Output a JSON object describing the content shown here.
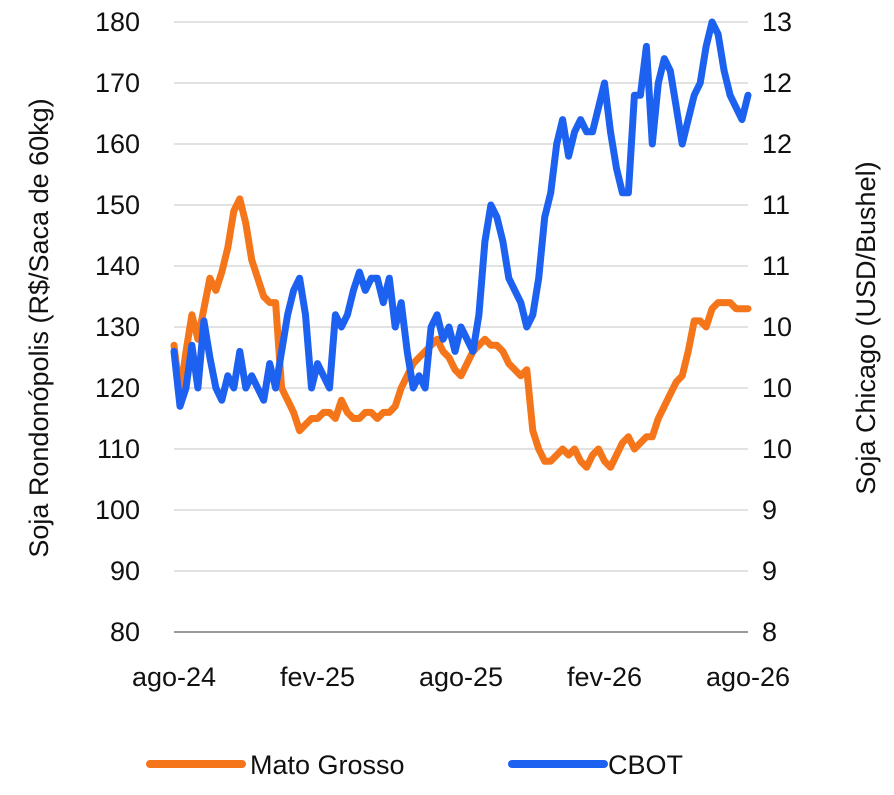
{
  "chart_data": {
    "type": "line",
    "title": "",
    "ylabel_left": "Soja Rondonópolis (R$/Saca de 60kg)",
    "ylabel_right": "Soja Chicago (USD/Bushel)",
    "ylim_left": [
      80,
      180
    ],
    "yticks_left": [
      "80",
      "90",
      "100",
      "110",
      "120",
      "130",
      "140",
      "150",
      "160",
      "170",
      "180"
    ],
    "ylim_right": [
      8,
      13
    ],
    "yticks_right": [
      "8",
      "9",
      "9",
      "10",
      "10",
      "10",
      "11",
      "11",
      "12",
      "12",
      "13"
    ],
    "xlim": [
      0,
      24
    ],
    "xticks": [
      {
        "pos": 0,
        "label": "ago-24"
      },
      {
        "pos": 6,
        "label": "fev-25"
      },
      {
        "pos": 12,
        "label": "ago-25"
      },
      {
        "pos": 18,
        "label": "fev-26"
      },
      {
        "pos": 24,
        "label": "ago-26"
      }
    ],
    "grid": true,
    "legend_position": "bottom",
    "series": [
      {
        "name": "Mato Grosso",
        "axis": "left",
        "color": "#f5761a",
        "x": [
          0,
          0.25,
          0.5,
          0.75,
          1,
          1.25,
          1.5,
          1.75,
          2,
          2.25,
          2.5,
          2.75,
          3,
          3.25,
          3.5,
          3.75,
          4,
          4.25,
          4.5,
          4.75,
          5,
          5.25,
          5.5,
          5.75,
          6,
          6.25,
          6.5,
          6.75,
          7,
          7.25,
          7.5,
          7.75,
          8,
          8.25,
          8.5,
          8.75,
          9,
          9.25,
          9.5,
          9.75,
          10,
          10.25,
          10.5,
          10.75,
          11,
          11.25,
          11.5,
          11.75,
          12,
          12.25,
          12.5,
          12.75,
          13,
          13.25,
          13.5,
          13.75,
          14,
          14.25,
          14.5,
          14.75,
          15,
          15.25,
          15.5,
          15.75,
          16,
          16.25,
          16.5,
          16.75,
          17,
          17.25,
          17.5,
          17.75,
          18,
          18.25,
          18.5,
          18.75,
          19,
          19.25,
          19.5,
          19.75,
          20,
          20.25,
          20.5,
          20.75,
          21,
          21.25,
          21.5,
          21.75,
          22,
          22.25,
          22.5,
          22.75,
          23,
          23.25,
          23.5,
          23.75,
          24
        ],
        "values": [
          127,
          119,
          126,
          132,
          128,
          133,
          138,
          136,
          139,
          143,
          149,
          151,
          147,
          141,
          138,
          135,
          134,
          134,
          120,
          118,
          116,
          113,
          114,
          115,
          115,
          116,
          116,
          115,
          118,
          116,
          115,
          115,
          116,
          116,
          115,
          116,
          116,
          117,
          120,
          122,
          124,
          125,
          126,
          127,
          128,
          126,
          125,
          123,
          122,
          124,
          126,
          127,
          128,
          127,
          127,
          126,
          124,
          123,
          122,
          123,
          113,
          110,
          108,
          108,
          109,
          110,
          109,
          110,
          108,
          107,
          109,
          110,
          108,
          107,
          109,
          111,
          112,
          110,
          111,
          112,
          112,
          115,
          117,
          119,
          121,
          122,
          126,
          131,
          131,
          130,
          133,
          134,
          134,
          134,
          133,
          133,
          133
        ]
      },
      {
        "name": "CBOT",
        "axis": "right",
        "color": "#1c61f0",
        "x": [
          0,
          0.25,
          0.5,
          0.75,
          1,
          1.25,
          1.5,
          1.75,
          2,
          2.25,
          2.5,
          2.75,
          3,
          3.25,
          3.5,
          3.75,
          4,
          4.25,
          4.5,
          4.75,
          5,
          5.25,
          5.5,
          5.75,
          6,
          6.25,
          6.5,
          6.75,
          7,
          7.25,
          7.5,
          7.75,
          8,
          8.25,
          8.5,
          8.75,
          9,
          9.25,
          9.5,
          9.75,
          10,
          10.25,
          10.5,
          10.75,
          11,
          11.25,
          11.5,
          11.75,
          12,
          12.25,
          12.5,
          12.75,
          13,
          13.25,
          13.5,
          13.75,
          14,
          14.25,
          14.5,
          14.75,
          15,
          15.25,
          15.5,
          15.75,
          16,
          16.25,
          16.5,
          16.75,
          17,
          17.25,
          17.5,
          17.75,
          18,
          18.25,
          18.5,
          18.75,
          19,
          19.25,
          19.5,
          19.75,
          20,
          20.25,
          20.5,
          20.75,
          21,
          21.25,
          21.5,
          21.75,
          22,
          22.25,
          22.5,
          22.75,
          23,
          23.25,
          23.5,
          23.75,
          24
        ],
        "values": [
          10.3,
          9.85,
          10.0,
          10.35,
          10.0,
          10.55,
          10.25,
          10.0,
          9.9,
          10.1,
          10.0,
          10.3,
          10.0,
          10.1,
          10.0,
          9.9,
          10.2,
          10.0,
          10.3,
          10.6,
          10.8,
          10.9,
          10.6,
          10.0,
          10.2,
          10.1,
          10.0,
          10.6,
          10.5,
          10.6,
          10.8,
          10.95,
          10.8,
          10.9,
          10.9,
          10.7,
          10.9,
          10.5,
          10.7,
          10.3,
          10.0,
          10.1,
          10.0,
          10.5,
          10.6,
          10.4,
          10.5,
          10.3,
          10.5,
          10.4,
          10.3,
          10.6,
          11.2,
          11.5,
          11.4,
          11.2,
          10.9,
          10.8,
          10.7,
          10.5,
          10.6,
          10.9,
          11.4,
          11.6,
          12.0,
          12.2,
          11.9,
          12.1,
          12.2,
          12.1,
          12.1,
          12.3,
          12.5,
          12.1,
          11.8,
          11.6,
          11.6,
          12.4,
          12.4,
          12.8,
          12.0,
          12.5,
          12.7,
          12.6,
          12.3,
          12.0,
          12.2,
          12.4,
          12.5,
          12.8,
          13.0,
          12.9,
          12.6,
          12.4,
          12.3,
          12.2,
          12.4
        ]
      }
    ]
  }
}
